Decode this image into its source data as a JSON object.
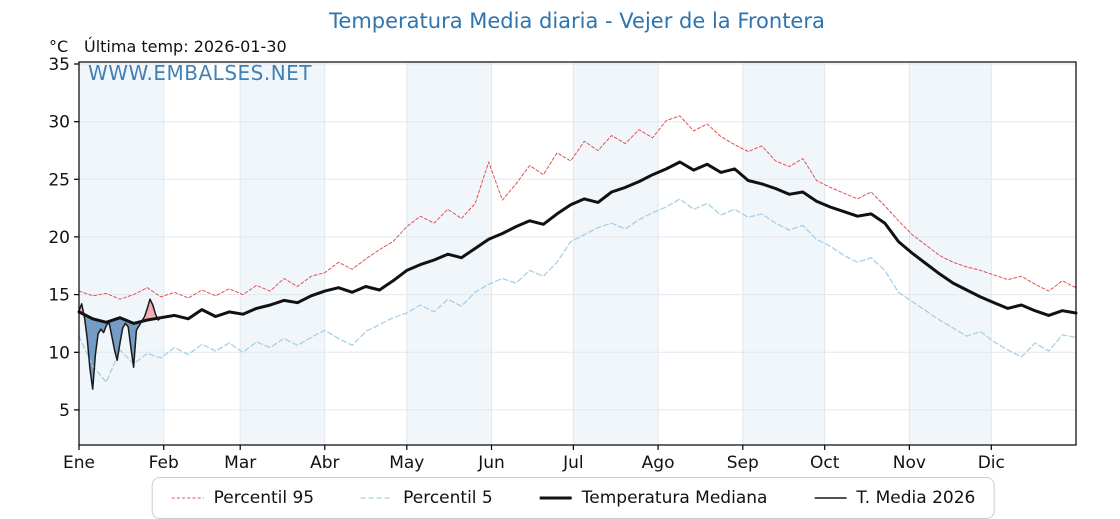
{
  "title": "Temperatura Media diaria - Vejer de la Frontera",
  "subtitle": "Última temp: 2026-01-30",
  "watermark": "WWW.EMBALSES.NET",
  "colors": {
    "title_blue": "#2e74ae",
    "band": "#f1f6fb",
    "grid": "#e2e8ee",
    "frame": "#000000",
    "fill_below": "#5e8cba",
    "fill_above": "#f1a9a9",
    "p95_red": "#e35252",
    "p5_blue": "#a6d1e6",
    "median_black": "#111111",
    "actual_black": "#1a1a1a"
  },
  "chart_data": {
    "type": "line",
    "title": "Temperatura Media diaria - Vejer de la Frontera",
    "xlabel": "",
    "ylabel": "°C",
    "x_unit": "day_of_year",
    "xlim": [
      0,
      365
    ],
    "ylim": [
      2,
      35.2
    ],
    "yticks": [
      5,
      10,
      15,
      20,
      25,
      30,
      35
    ],
    "grid": true,
    "legend_position": "bottom-center",
    "month_labels": [
      "Ene",
      "Feb",
      "Mar",
      "Abr",
      "May",
      "Jun",
      "Jul",
      "Ago",
      "Sep",
      "Oct",
      "Nov",
      "Dic"
    ],
    "month_start_days": [
      0,
      31,
      59,
      90,
      120,
      151,
      181,
      212,
      243,
      273,
      304,
      334
    ],
    "series": [
      {
        "name": "Percentil 95",
        "color": "#e35252",
        "width": 1,
        "dash": [
          3,
          2.2
        ],
        "x_step": 5,
        "values": [
          15.3,
          14.9,
          15.1,
          14.6,
          15.0,
          15.6,
          14.8,
          15.2,
          14.7,
          15.4,
          14.9,
          15.5,
          15.0,
          15.8,
          15.3,
          16.4,
          15.7,
          16.6,
          16.9,
          17.8,
          17.2,
          18.1,
          18.9,
          19.6,
          20.9,
          21.8,
          21.2,
          22.4,
          21.6,
          22.9,
          26.5,
          23.2,
          24.6,
          26.2,
          25.4,
          27.3,
          26.6,
          28.3,
          27.5,
          28.8,
          28.1,
          29.3,
          28.6,
          30.1,
          30.5,
          29.2,
          29.8,
          28.7,
          28.0,
          27.4,
          27.9,
          26.6,
          26.1,
          26.8,
          24.9,
          24.3,
          23.8,
          23.3,
          23.9,
          22.7,
          21.4,
          20.2,
          19.3,
          18.4,
          17.8,
          17.4,
          17.1,
          16.7,
          16.3,
          16.6,
          15.9,
          15.3,
          16.2,
          15.6
        ]
      },
      {
        "name": "Percentil 5",
        "color": "#a6d1e6",
        "width": 1.3,
        "dash": [
          5,
          3
        ],
        "x_step": 5,
        "values": [
          11.4,
          8.8,
          7.4,
          10.2,
          9.0,
          9.9,
          9.5,
          10.4,
          9.8,
          10.7,
          10.1,
          10.8,
          10.0,
          10.9,
          10.4,
          11.2,
          10.6,
          11.3,
          11.9,
          11.2,
          10.6,
          11.8,
          12.4,
          13.0,
          13.4,
          14.1,
          13.5,
          14.6,
          14.0,
          15.2,
          15.9,
          16.4,
          16.0,
          17.1,
          16.6,
          17.8,
          19.6,
          20.2,
          20.8,
          21.2,
          20.7,
          21.5,
          22.1,
          22.6,
          23.3,
          22.4,
          22.9,
          21.9,
          22.4,
          21.7,
          22.0,
          21.2,
          20.6,
          21.0,
          19.8,
          19.2,
          18.4,
          17.8,
          18.2,
          17.1,
          15.2,
          14.4,
          13.6,
          12.8,
          12.1,
          11.4,
          11.8,
          10.9,
          10.2,
          9.6,
          10.8,
          10.1,
          11.5,
          11.3
        ]
      },
      {
        "name": "Temperatura Mediana",
        "color": "#111111",
        "width": 3,
        "dash": null,
        "x_step": 5,
        "values": [
          13.5,
          12.9,
          12.6,
          13.0,
          12.5,
          12.8,
          13.0,
          13.2,
          12.9,
          13.7,
          13.1,
          13.5,
          13.3,
          13.8,
          14.1,
          14.5,
          14.3,
          14.9,
          15.3,
          15.6,
          15.2,
          15.7,
          15.4,
          16.2,
          17.1,
          17.6,
          18.0,
          18.5,
          18.2,
          19.0,
          19.8,
          20.3,
          20.9,
          21.4,
          21.1,
          22.0,
          22.8,
          23.3,
          23.0,
          23.9,
          24.3,
          24.8,
          25.4,
          25.9,
          26.5,
          25.8,
          26.3,
          25.6,
          25.9,
          24.9,
          24.6,
          24.2,
          23.7,
          23.9,
          23.1,
          22.6,
          22.2,
          21.8,
          22.0,
          21.2,
          19.6,
          18.6,
          17.7,
          16.8,
          16.0,
          15.4,
          14.8,
          14.3,
          13.8,
          14.1,
          13.6,
          13.2,
          13.6,
          13.4
        ]
      },
      {
        "name": "T. Media 2026",
        "color": "#1a1a1a",
        "width": 1.5,
        "dash": null,
        "x_step": 1,
        "values": [
          13.6,
          14.2,
          13.0,
          11.2,
          8.6,
          6.8,
          9.8,
          11.6,
          12.0,
          11.7,
          12.3,
          12.6,
          11.4,
          10.2,
          9.3,
          10.8,
          12.1,
          12.5,
          12.2,
          10.4,
          8.7,
          11.9,
          12.3,
          12.7,
          13.1,
          13.8,
          14.6,
          14.1,
          13.3,
          12.8,
          13.0
        ]
      }
    ],
    "fills": [
      {
        "name": "actual-below-median",
        "between": [
          "T. Media 2026",
          "Temperatura Mediana"
        ],
        "when": "below",
        "color": "#5e8cba"
      },
      {
        "name": "actual-above-median",
        "between": [
          "T. Media 2026",
          "Temperatura Mediana"
        ],
        "when": "above",
        "color": "#f1a9a9"
      }
    ]
  }
}
